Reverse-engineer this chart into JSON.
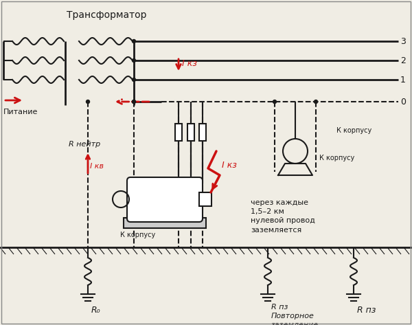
{
  "bg_color": "#f0ede4",
  "line_color": "#1a1a1a",
  "red_color": "#cc1111",
  "labels": {
    "title": "Трансформатор",
    "pitanie": "Питание",
    "r_nejtr": "R нейтр",
    "i_kv": "I кв",
    "i_kz_top": "I кз",
    "i_kz_mid": "I кз",
    "k_korpusu1": "К корпусу",
    "k_korpusu2": "К корпусу",
    "k_korpusu3": "К корпусу",
    "cherez": "через каждые\n1,5–2 км\nнулевой провод\nзаземляется",
    "r0": "R₀",
    "rpz1": "R пз\nПовторное\nзаземление",
    "rpz2": "R пз",
    "line3": "3",
    "line2": "2",
    "line1": "1",
    "line0": "0"
  }
}
